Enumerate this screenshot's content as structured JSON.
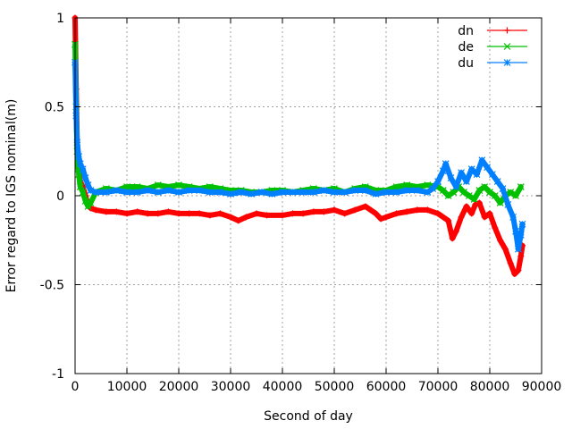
{
  "chart_data": {
    "type": "line",
    "title": "",
    "xlabel": "Second of day",
    "ylabel": "Error regard to IGS nominal(m)",
    "xlim": [
      0,
      90000
    ],
    "ylim": [
      -1,
      1
    ],
    "grid": true,
    "legend_position": "top-right",
    "xticks": [
      0,
      10000,
      20000,
      30000,
      40000,
      50000,
      60000,
      70000,
      80000,
      90000
    ],
    "xtick_labels": [
      "0",
      "10000",
      "20000",
      "30000",
      "40000",
      "50000",
      "60000",
      "70000",
      "80000",
      "90000"
    ],
    "yticks": [
      -1,
      -0.5,
      0,
      0.5,
      1
    ],
    "ytick_labels": [
      "-1",
      "-0.5",
      "0",
      "0.5",
      "1"
    ],
    "series": [
      {
        "name": "dn",
        "color": "#ff0000",
        "marker": "plus",
        "x": [
          0,
          200,
          400,
          700,
          1000,
          1500,
          2000,
          2500,
          3000,
          4000,
          6000,
          8000,
          10000,
          12000,
          14000,
          16000,
          18000,
          20000,
          22000,
          24000,
          26000,
          28000,
          30000,
          31500,
          33000,
          35000,
          37000,
          40000,
          42000,
          44000,
          46000,
          48000,
          50000,
          52000,
          54000,
          56000,
          58000,
          59000,
          60000,
          62000,
          64000,
          66000,
          68000,
          70000,
          71000,
          72000,
          72800,
          73500,
          74500,
          75500,
          76500,
          77200,
          78000,
          79000,
          80000,
          81000,
          82000,
          83000,
          84000,
          84800,
          85500,
          86000,
          86300
        ],
        "values": [
          1.0,
          0.6,
          0.3,
          0.15,
          0.08,
          0.05,
          0.0,
          -0.05,
          -0.07,
          -0.08,
          -0.09,
          -0.09,
          -0.1,
          -0.09,
          -0.1,
          -0.1,
          -0.09,
          -0.1,
          -0.1,
          -0.1,
          -0.11,
          -0.1,
          -0.12,
          -0.14,
          -0.12,
          -0.1,
          -0.11,
          -0.11,
          -0.1,
          -0.1,
          -0.09,
          -0.09,
          -0.08,
          -0.1,
          -0.08,
          -0.06,
          -0.1,
          -0.13,
          -0.12,
          -0.1,
          -0.09,
          -0.08,
          -0.08,
          -0.1,
          -0.12,
          -0.14,
          -0.24,
          -0.2,
          -0.12,
          -0.06,
          -0.1,
          -0.05,
          -0.04,
          -0.12,
          -0.1,
          -0.18,
          -0.25,
          -0.3,
          -0.38,
          -0.44,
          -0.42,
          -0.34,
          -0.28
        ]
      },
      {
        "name": "de",
        "color": "#00c000",
        "marker": "cross",
        "x": [
          0,
          200,
          400,
          700,
          1000,
          1500,
          2000,
          2500,
          3000,
          4000,
          6000,
          8000,
          10000,
          12000,
          14000,
          16000,
          18000,
          20000,
          22000,
          24000,
          26000,
          28000,
          30000,
          32000,
          34000,
          36000,
          38000,
          40000,
          42000,
          44000,
          46000,
          48000,
          50000,
          52000,
          54000,
          56000,
          58000,
          60000,
          62000,
          64000,
          66000,
          68000,
          70000,
          71000,
          72000,
          73000,
          74000,
          75000,
          76000,
          77000,
          78000,
          79000,
          80000,
          81000,
          82000,
          83000,
          84000,
          85000,
          86000
        ],
        "values": [
          0.85,
          0.5,
          0.25,
          0.12,
          0.05,
          0.02,
          -0.03,
          -0.06,
          -0.04,
          0.02,
          0.04,
          0.03,
          0.05,
          0.05,
          0.04,
          0.06,
          0.05,
          0.06,
          0.05,
          0.04,
          0.05,
          0.04,
          0.03,
          0.03,
          0.02,
          0.02,
          0.03,
          0.03,
          0.02,
          0.03,
          0.04,
          0.03,
          0.04,
          0.02,
          0.04,
          0.05,
          0.03,
          0.03,
          0.05,
          0.06,
          0.05,
          0.06,
          0.05,
          0.03,
          0.0,
          0.02,
          0.05,
          0.02,
          0.0,
          -0.02,
          0.03,
          0.05,
          0.02,
          0.0,
          -0.04,
          0.0,
          0.02,
          0.0,
          0.05
        ]
      },
      {
        "name": "du",
        "color": "#0080ff",
        "marker": "star",
        "x": [
          0,
          200,
          400,
          700,
          1000,
          1500,
          2000,
          2500,
          3000,
          4000,
          6000,
          8000,
          10000,
          12000,
          14000,
          16000,
          18000,
          20000,
          22000,
          24000,
          26000,
          28000,
          30000,
          32000,
          34000,
          36000,
          38000,
          40000,
          42000,
          44000,
          46000,
          48000,
          50000,
          52000,
          54000,
          56000,
          58000,
          60000,
          62000,
          64000,
          66000,
          68000,
          69000,
          70000,
          71000,
          71500,
          72500,
          73500,
          74500,
          75500,
          76500,
          77500,
          78500,
          79500,
          80500,
          81500,
          82500,
          83500,
          84500,
          85000,
          85500,
          86000,
          86300
        ],
        "values": [
          0.75,
          0.45,
          0.3,
          0.22,
          0.18,
          0.15,
          0.1,
          0.06,
          0.03,
          0.02,
          0.02,
          0.03,
          0.02,
          0.02,
          0.03,
          0.02,
          0.03,
          0.02,
          0.03,
          0.03,
          0.02,
          0.02,
          0.01,
          0.02,
          0.01,
          0.02,
          0.01,
          0.02,
          0.02,
          0.02,
          0.02,
          0.03,
          0.02,
          0.02,
          0.03,
          0.03,
          0.01,
          0.02,
          0.02,
          0.03,
          0.03,
          0.02,
          0.04,
          0.08,
          0.14,
          0.18,
          0.1,
          0.05,
          0.13,
          0.08,
          0.15,
          0.12,
          0.2,
          0.16,
          0.12,
          0.08,
          0.04,
          -0.05,
          -0.12,
          -0.2,
          -0.3,
          -0.22,
          -0.16
        ]
      }
    ]
  }
}
